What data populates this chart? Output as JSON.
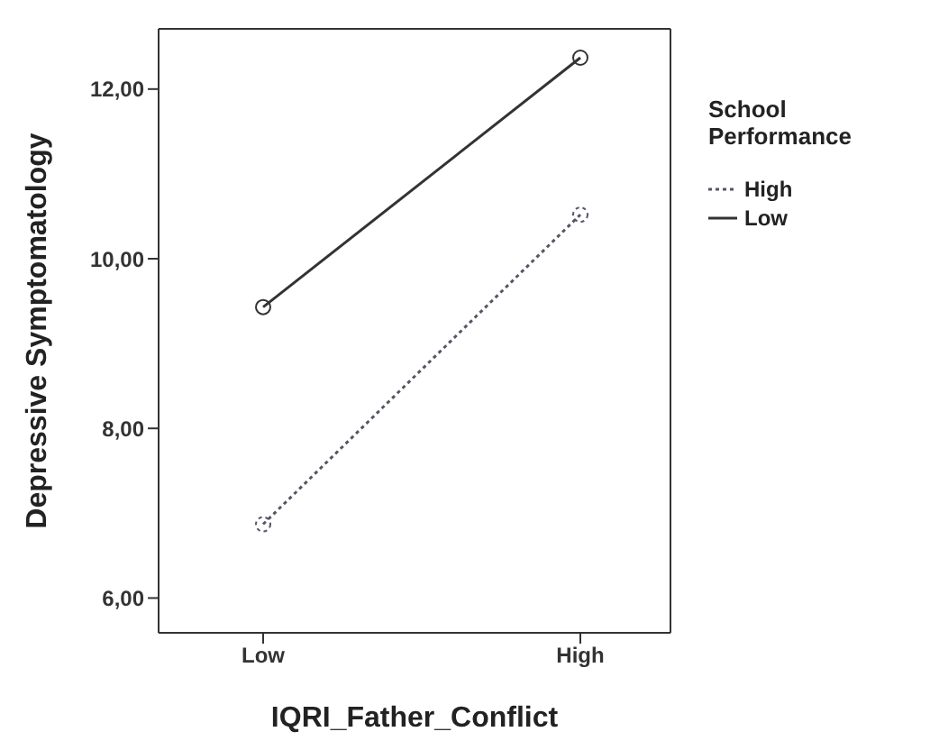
{
  "chart_data": {
    "type": "line",
    "xlabel": "IQRI_Father_Conflict",
    "ylabel": "Depressive Symptomatology",
    "legend_title": "School Performance",
    "legend": "top right",
    "marker": "circle",
    "categories": [
      "Low",
      "High"
    ],
    "series": [
      {
        "name": "High",
        "color": "#555566",
        "line_style": "dotted",
        "values": [
          6.87,
          10.52
        ]
      },
      {
        "name": "Low",
        "color": "#333333",
        "line_style": "solid",
        "values": [
          9.43,
          12.37
        ]
      }
    ],
    "ylim": [
      5.59,
      12.71
    ],
    "yticks": [
      {
        "value": 6,
        "label": "6,00"
      },
      {
        "value": 8,
        "label": "8,00"
      },
      {
        "value": 10,
        "label": "10,00"
      },
      {
        "value": 12,
        "label": "12,00"
      }
    ]
  }
}
